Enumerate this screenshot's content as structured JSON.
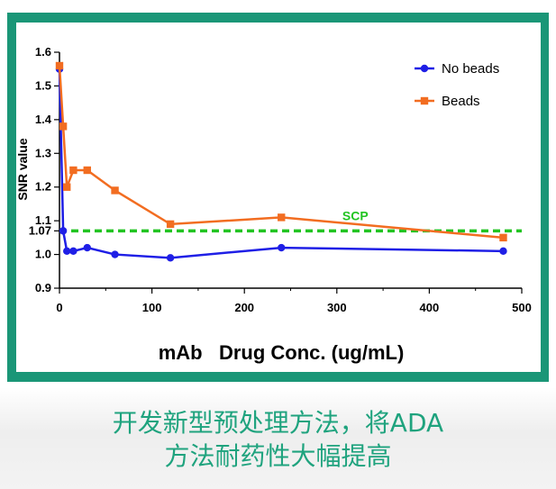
{
  "chart_data": {
    "type": "line",
    "title": "",
    "xlabel": "mAb   Drug Conc. (ug/mL)",
    "ylabel": "SNR value",
    "xlim": [
      0,
      500
    ],
    "ylim": [
      0.9,
      1.6
    ],
    "xticks": [
      0,
      100,
      200,
      300,
      400,
      500
    ],
    "yticks": [
      0.9,
      1.0,
      1.07,
      1.1,
      1.2,
      1.3,
      1.4,
      1.5,
      1.6
    ],
    "ytick_labels": [
      "0.9",
      "1.0",
      "1.07",
      "1.1",
      "1.2",
      "1.3",
      "1.4",
      "1.5",
      "1.6"
    ],
    "legend_position": "top-right",
    "series": [
      {
        "name": "No beads",
        "color": "#1f1fe6",
        "marker": "circle",
        "x": [
          0,
          4,
          8,
          15,
          30,
          60,
          120,
          240,
          480
        ],
        "y": [
          1.55,
          1.07,
          1.01,
          1.01,
          1.02,
          1.0,
          0.99,
          1.02,
          1.01
        ]
      },
      {
        "name": "Beads",
        "color": "#f26d21",
        "marker": "square",
        "x": [
          0,
          4,
          8,
          15,
          30,
          60,
          120,
          240,
          480
        ],
        "y": [
          1.56,
          1.38,
          1.2,
          1.25,
          1.25,
          1.19,
          1.09,
          1.11,
          1.05
        ]
      }
    ],
    "reference_line": {
      "label": "SCP",
      "y": 1.07,
      "color": "#22c422",
      "style": "dashed"
    }
  },
  "caption": {
    "line1": "开发新型预处理方法，将ADA",
    "line2": "方法耐药性大幅提高"
  }
}
